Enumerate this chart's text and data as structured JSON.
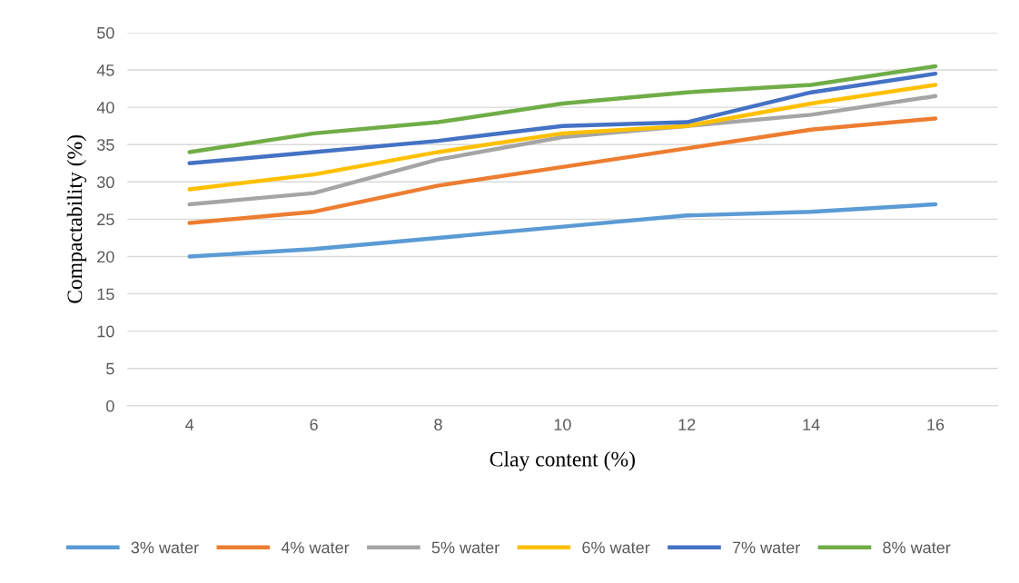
{
  "chart_data": {
    "type": "line",
    "xlabel": "Clay content (%)",
    "ylabel": "Compactability (%)",
    "categories": [
      "4",
      "6",
      "8",
      "10",
      "12",
      "14",
      "16"
    ],
    "series": [
      {
        "name": "3% water",
        "color": "#5b9bd5",
        "values": [
          20,
          21,
          22.5,
          24,
          25.5,
          26,
          27
        ]
      },
      {
        "name": "4% water",
        "color": "#ed7d31",
        "values": [
          24.5,
          26,
          29.5,
          32,
          34.5,
          37,
          38.5
        ]
      },
      {
        "name": "5% water",
        "color": "#a5a5a5",
        "values": [
          27,
          28.5,
          33,
          36,
          37.5,
          39,
          41.5
        ]
      },
      {
        "name": "6% water",
        "color": "#ffc000",
        "values": [
          29,
          31,
          34,
          36.5,
          37.5,
          40.5,
          43
        ]
      },
      {
        "name": "7% water",
        "color": "#4472c4",
        "values": [
          32.5,
          34,
          35.5,
          37.5,
          38,
          42,
          44.5
        ]
      },
      {
        "name": "8% water",
        "color": "#70ad47",
        "values": [
          34,
          36.5,
          38,
          40.5,
          42,
          43,
          45.5
        ]
      }
    ],
    "ylim": [
      0,
      50
    ],
    "yticks": [
      0,
      5,
      10,
      15,
      20,
      25,
      30,
      35,
      40,
      45,
      50
    ],
    "grid": "y",
    "legend": "bottom",
    "marker": "none",
    "line_style": "solid"
  }
}
